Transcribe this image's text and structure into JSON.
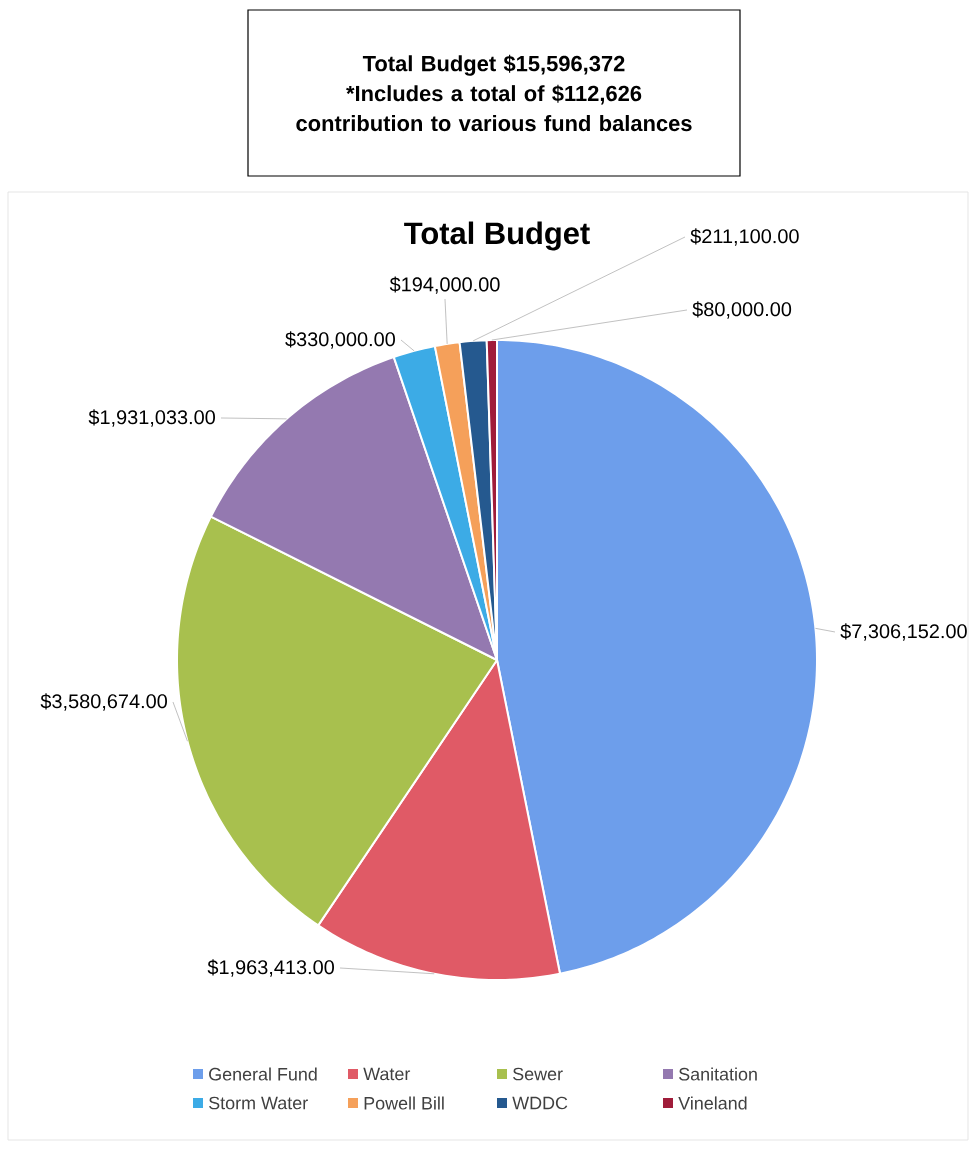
{
  "chart_data": {
    "type": "pie",
    "title": "Total Budget",
    "annotations": [
      "Total Budget $15,596,372",
      "*Includes a total of $112,626 contribution to various fund balances"
    ],
    "categories": [
      "General Fund",
      "Water",
      "Sewer",
      "Sanitation",
      "Storm Water",
      "Powell Bill",
      "WDDC",
      "Vineland"
    ],
    "values": [
      7306152,
      1963413,
      3580674,
      1931033,
      330000,
      194000,
      211100,
      80000
    ],
    "value_labels": [
      "$7,306,152.00",
      "$1,963,413.00",
      "$3,580,674.00",
      "$1,931,033.00",
      "$330,000.00",
      "$194,000.00",
      "$211,100.00",
      "$80,000.00"
    ],
    "colors": [
      "#6d9eeb",
      "#e05a66",
      "#a8c04e",
      "#9479b0",
      "#3cabe6",
      "#f5a05a",
      "#25598f",
      "#a01c3a"
    ],
    "legend": "bottom"
  }
}
